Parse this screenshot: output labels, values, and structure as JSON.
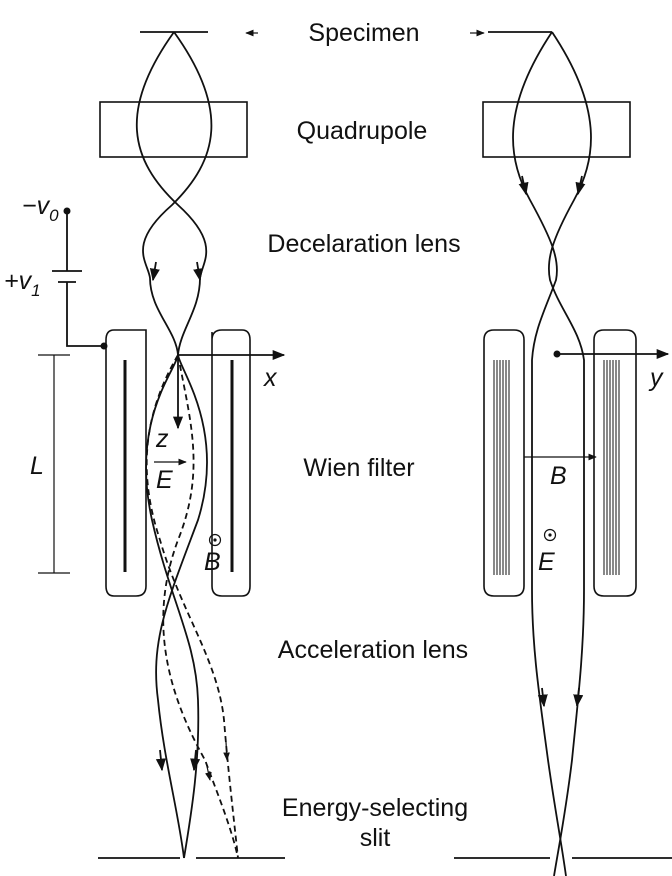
{
  "labels": {
    "specimen": "Specimen",
    "quadrupole": "Quadrupole",
    "deceleration_lens": "Decelaration lens",
    "wien_filter": "Wien filter",
    "acceleration_lens": "Acceleration lens",
    "energy_selecting_line1": "Energy-selecting",
    "energy_selecting_line2": "slit"
  },
  "symbols": {
    "v0_sign": "−",
    "v0": "v",
    "v0_sub": "0",
    "v1_sign": "+",
    "v1": "v",
    "v1_sub": "1",
    "length": "L",
    "x_axis": "x",
    "y_axis": "y",
    "z_axis": "z",
    "e_field_left": "E",
    "b_field_left": "B",
    "b_field_right": "B",
    "e_field_right": "E"
  }
}
